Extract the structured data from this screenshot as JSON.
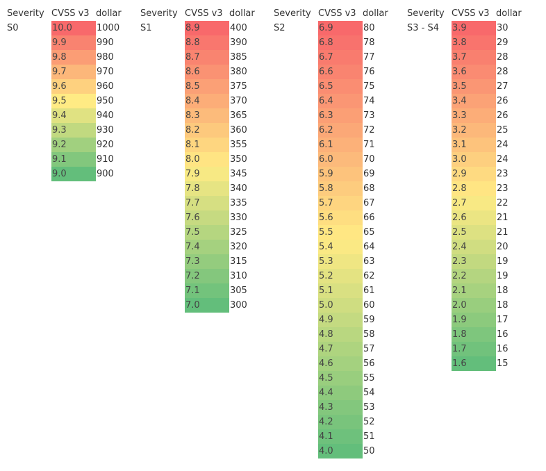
{
  "headers": {
    "severity": "Severity",
    "cvss": "CVSS v3",
    "dollar": "dollar"
  },
  "groups": [
    {
      "severity": "S0",
      "cvss": [
        "10.0",
        "9.9",
        "9.8",
        "9.7",
        "9.6",
        "9.5",
        "9.4",
        "9.3",
        "9.2",
        "9.1",
        "9.0"
      ],
      "dollar": [
        "1000",
        "990",
        "980",
        "970",
        "960",
        "950",
        "940",
        "930",
        "920",
        "910",
        "900"
      ]
    },
    {
      "severity": "S1",
      "cvss": [
        "8.9",
        "8.8",
        "8.7",
        "8.6",
        "8.5",
        "8.4",
        "8.3",
        "8.2",
        "8.1",
        "8.0",
        "7.9",
        "7.8",
        "7.7",
        "7.6",
        "7.5",
        "7.4",
        "7.3",
        "7.2",
        "7.1",
        "7.0"
      ],
      "dollar": [
        "400",
        "390",
        "385",
        "380",
        "375",
        "370",
        "365",
        "360",
        "355",
        "350",
        "345",
        "340",
        "335",
        "330",
        "325",
        "320",
        "315",
        "310",
        "305",
        "300"
      ]
    },
    {
      "severity": "S2",
      "cvss": [
        "6.9",
        "6.8",
        "6.7",
        "6.6",
        "6.5",
        "6.4",
        "6.3",
        "6.2",
        "6.1",
        "6.0",
        "5.9",
        "5.8",
        "5.7",
        "5.6",
        "5.5",
        "5.4",
        "5.3",
        "5.2",
        "5.1",
        "5.0",
        "4.9",
        "4.8",
        "4.7",
        "4.6",
        "4.5",
        "4.4",
        "4.3",
        "4.2",
        "4.1",
        "4.0"
      ],
      "dollar": [
        "80",
        "78",
        "77",
        "76",
        "75",
        "74",
        "73",
        "72",
        "71",
        "70",
        "69",
        "68",
        "67",
        "66",
        "65",
        "64",
        "63",
        "62",
        "61",
        "60",
        "59",
        "58",
        "57",
        "56",
        "55",
        "54",
        "53",
        "52",
        "51",
        "50"
      ]
    },
    {
      "severity": "S3 - S4",
      "cvss": [
        "3.9",
        "3.8",
        "3.7",
        "3.6",
        "3.5",
        "3.4",
        "3.3",
        "3.2",
        "3.1",
        "3.0",
        "2.9",
        "2.8",
        "2.7",
        "2.6",
        "2.5",
        "2.4",
        "2.3",
        "2.2",
        "2.1",
        "2.0",
        "1.9",
        "1.8",
        "1.7",
        "1.6"
      ],
      "dollar": [
        "30",
        "29",
        "28",
        "28",
        "27",
        "26",
        "26",
        "25",
        "24",
        "24",
        "23",
        "23",
        "22",
        "21",
        "21",
        "20",
        "19",
        "19",
        "18",
        "18",
        "17",
        "16",
        "16",
        "15"
      ]
    }
  ],
  "colors": {
    "scale_high": "#f8696b",
    "scale_mid": "#ffeb84",
    "scale_low": "#63be7b"
  }
}
